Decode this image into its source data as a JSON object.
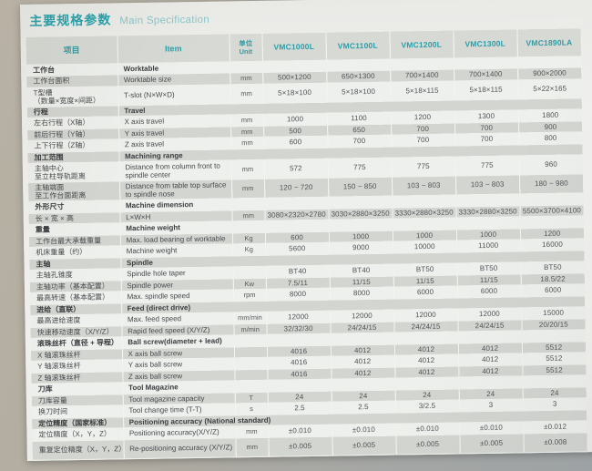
{
  "page": {
    "title_zh": "主要规格参数",
    "title_en": "Main Specification"
  },
  "colors": {
    "accent_teal": "#2ba1ab",
    "subtitle_teal": "#8cc5ca",
    "header_bg": "#d6d9d4",
    "stripe_gray": "#d3d5d1",
    "stripe_light": "#eef0ed"
  },
  "table": {
    "headers": {
      "item_zh": "项目",
      "item_en": "Item",
      "unit": "单位\nUnit",
      "models": [
        "VMC1000L",
        "VMC1100L",
        "VMC1200L",
        "VMC1300L",
        "VMC1890LA"
      ]
    },
    "rows": [
      {
        "type": "section",
        "zh": "工作台",
        "en": "Worktable"
      },
      {
        "type": "data",
        "zh": "工作台面积",
        "en": "Worktable size",
        "unit": "mm",
        "values": [
          "500×1200",
          "650×1300",
          "700×1400",
          "700×1400",
          "900×2000"
        ]
      },
      {
        "type": "data",
        "tall": true,
        "zh": "T型槽\n（数量×宽度×间距）",
        "en": "T-slot (N×W×D)",
        "unit": "mm",
        "values": [
          "5×18×100",
          "5×18×100",
          "5×18×115",
          "5×18×115",
          "5×22×165"
        ]
      },
      {
        "type": "section",
        "zh": "行程",
        "en": "Travel"
      },
      {
        "type": "data",
        "zh": "左右行程（X轴）",
        "en": "X axis travel",
        "unit": "mm",
        "values": [
          "1000",
          "1100",
          "1200",
          "1300",
          "1800"
        ]
      },
      {
        "type": "data",
        "zh": "前后行程（Y轴）",
        "en": "Y axis travel",
        "unit": "mm",
        "values": [
          "500",
          "650",
          "700",
          "700",
          "900"
        ]
      },
      {
        "type": "data",
        "zh": "上下行程（Z轴）",
        "en": "Z axis travel",
        "unit": "mm",
        "values": [
          "600",
          "700",
          "700",
          "700",
          "800"
        ]
      },
      {
        "type": "section",
        "zh": "加工范围",
        "en": "Machining range"
      },
      {
        "type": "data",
        "tall": true,
        "zh": "主轴中心\n至立柱导轨距离",
        "en": "Distance from column front to spindle center",
        "unit": "mm",
        "values": [
          "572",
          "775",
          "775",
          "775",
          "960"
        ]
      },
      {
        "type": "data",
        "tall": true,
        "zh": "主轴端面\n至工作台面距离",
        "en": "Distance from table top surface to spindle nose",
        "unit": "mm",
        "values": [
          "120 ~ 720",
          "150 ~ 850",
          "103 ~ 803",
          "103 ~ 803",
          "180 ~ 980"
        ]
      },
      {
        "type": "section",
        "zh": "外形尺寸",
        "en": "Machine dimension"
      },
      {
        "type": "data",
        "zh": "长 × 宽 × 高",
        "en": "L×W×H",
        "unit": "mm",
        "values": [
          "3080×2320×2780",
          "3030×2880×3250",
          "3330×2880×3250",
          "3330×2880×3250",
          "5500×3700×4100"
        ]
      },
      {
        "type": "section",
        "zh": "重量",
        "en": "Machine weight"
      },
      {
        "type": "data",
        "zh": "工作台最大承载重量",
        "en": "Max. load bearing of worktable",
        "unit": "Kg",
        "values": [
          "600",
          "1000",
          "1000",
          "1000",
          "1200"
        ]
      },
      {
        "type": "data",
        "zh": "机床重量（约）",
        "en": "Machine weight",
        "unit": "Kg",
        "values": [
          "5600",
          "9000",
          "10000",
          "11000",
          "16000"
        ]
      },
      {
        "type": "section",
        "zh": "主轴",
        "en": "Spindle"
      },
      {
        "type": "data",
        "zh": "主轴孔锥度",
        "en": "Spindle hole taper",
        "unit": "",
        "values": [
          "BT40",
          "BT40",
          "BT50",
          "BT50",
          "BT50"
        ]
      },
      {
        "type": "data",
        "zh": "主轴功率（基本配置）",
        "en": "Spindle power",
        "unit": "Kw",
        "values": [
          "7.5/11",
          "11/15",
          "11/15",
          "11/15",
          "18.5/22"
        ]
      },
      {
        "type": "data",
        "zh": "最高转速（基本配置）",
        "en": "Max. spindle speed",
        "unit": "rpm",
        "values": [
          "8000",
          "8000",
          "6000",
          "6000",
          "6000"
        ]
      },
      {
        "type": "section",
        "zh": "进给（直联）",
        "en": "Feed (direct drive)"
      },
      {
        "type": "data",
        "zh": "最高进给速度",
        "en": "Max. feed speed",
        "unit": "mm/min",
        "values": [
          "12000",
          "12000",
          "12000",
          "12000",
          "15000"
        ]
      },
      {
        "type": "data",
        "zh": "快速移动速度（X/Y/Z）",
        "en": "Rapid feed speed (X/Y/Z)",
        "unit": "m/min",
        "values": [
          "32/32/30",
          "24/24/15",
          "24/24/15",
          "24/24/15",
          "20/20/15"
        ]
      },
      {
        "type": "section",
        "zh": "滚珠丝杆（直径 + 导程）",
        "en": "Ball screw(diameter + lead)"
      },
      {
        "type": "data",
        "zh": "X 轴滚珠丝杆",
        "en": "X axis ball screw",
        "unit": "",
        "values": [
          "4016",
          "4012",
          "4012",
          "4012",
          "5512"
        ]
      },
      {
        "type": "data",
        "zh": "Y 轴滚珠丝杆",
        "en": "Y axis ball screw",
        "unit": "",
        "values": [
          "4016",
          "4012",
          "4012",
          "4012",
          "5512"
        ]
      },
      {
        "type": "data",
        "zh": "Z 轴滚珠丝杆",
        "en": "Z axis ball screw",
        "unit": "",
        "values": [
          "4016",
          "4012",
          "4012",
          "4012",
          "5512"
        ]
      },
      {
        "type": "section",
        "zh": "刀库",
        "en": "Tool Magazine"
      },
      {
        "type": "data",
        "zh": "刀库容量",
        "en": "Tool magazine capacity",
        "unit": "T",
        "values": [
          "24",
          "24",
          "24",
          "24",
          "24"
        ]
      },
      {
        "type": "data",
        "zh": "换刀时间",
        "en": "Tool change time (T-T)",
        "unit": "s",
        "values": [
          "2.5",
          "2.5",
          "3/2.5",
          "3",
          "3"
        ]
      },
      {
        "type": "section",
        "zh": "定位精度（国家标准）",
        "en": "Positioning accuracy (National standard)"
      },
      {
        "type": "data",
        "zh": "定位精度（X，Y，Z）",
        "en": "Positioning accuracy(X/Y/Z)",
        "unit": "mm",
        "values": [
          "±0.010",
          "±0.010",
          "±0.010",
          "±0.010",
          "±0.012"
        ]
      },
      {
        "type": "data",
        "tall": true,
        "zh": "重复定位精度（X，Y，Z）",
        "en": "Re-positioning accuracy (X/Y/Z)",
        "unit": "mm",
        "values": [
          "±0.005",
          "±0.005",
          "±0.005",
          "±0.005",
          "±0.008"
        ]
      }
    ]
  }
}
